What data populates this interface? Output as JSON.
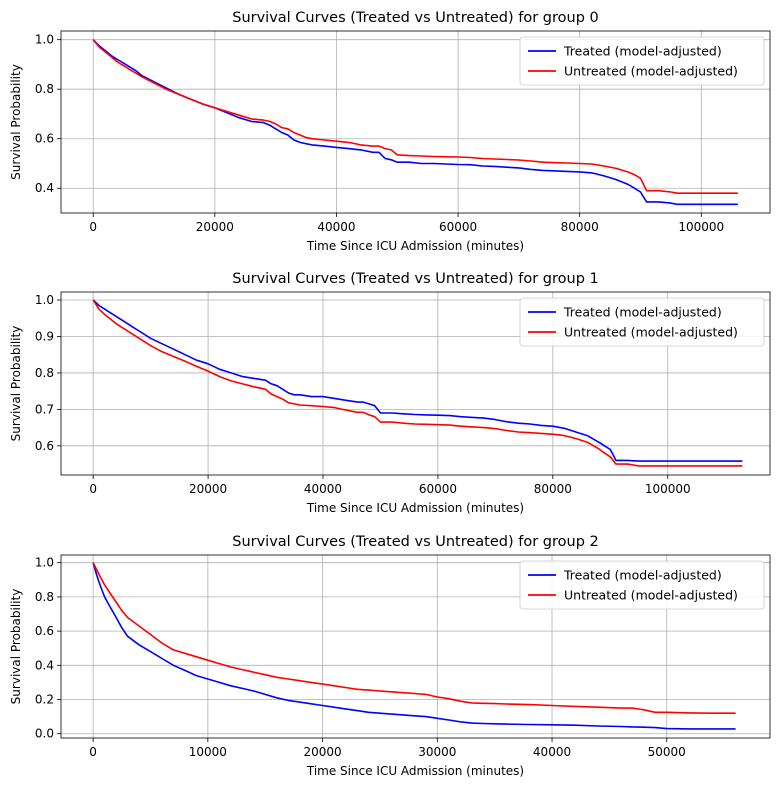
{
  "chart_data": [
    {
      "type": "line",
      "title": "Survival Curves (Treated vs Untreated) for group 0",
      "xlabel": "Time Since ICU Admission (minutes)",
      "ylabel": "Survival Probability",
      "xlim": [
        -5300,
        111300
      ],
      "ylim": [
        0.3,
        1.035
      ],
      "xticks": [
        0,
        20000,
        40000,
        60000,
        80000,
        100000
      ],
      "xtick_labels": [
        "0",
        "20000",
        "40000",
        "60000",
        "80000",
        "100000"
      ],
      "yticks": [
        0.4,
        0.6,
        0.8,
        1.0
      ],
      "ytick_labels": [
        "0.4",
        "0.6",
        "0.8",
        "1.0"
      ],
      "grid": true,
      "legend_position": "top-right",
      "series": [
        {
          "name": "Treated (model-adjusted)",
          "color": "#0000ff",
          "x": [
            0,
            1000,
            2000,
            3000,
            4000,
            5000,
            6000,
            7000,
            8000,
            10000,
            12000,
            14000,
            16000,
            18000,
            20000,
            22000,
            24000,
            26000,
            28000,
            29000,
            30000,
            31000,
            32000,
            33000,
            34000,
            35000,
            36000,
            38000,
            40000,
            42000,
            44000,
            46000,
            47000,
            48000,
            49000,
            50000,
            52000,
            54000,
            56000,
            58000,
            60000,
            62000,
            64000,
            66000,
            68000,
            70000,
            72000,
            74000,
            76000,
            78000,
            80000,
            82000,
            84000,
            86000,
            88000,
            89000,
            90000,
            91000,
            93000,
            95000,
            96000,
            100000,
            106000
          ],
          "y": [
            1.0,
            0.975,
            0.955,
            0.935,
            0.92,
            0.905,
            0.89,
            0.875,
            0.855,
            0.83,
            0.805,
            0.78,
            0.76,
            0.74,
            0.725,
            0.705,
            0.685,
            0.67,
            0.665,
            0.655,
            0.64,
            0.625,
            0.615,
            0.595,
            0.585,
            0.58,
            0.575,
            0.57,
            0.565,
            0.56,
            0.555,
            0.545,
            0.545,
            0.52,
            0.515,
            0.505,
            0.505,
            0.5,
            0.5,
            0.498,
            0.496,
            0.495,
            0.49,
            0.488,
            0.485,
            0.482,
            0.476,
            0.472,
            0.47,
            0.468,
            0.466,
            0.462,
            0.45,
            0.435,
            0.415,
            0.4,
            0.385,
            0.345,
            0.345,
            0.34,
            0.335,
            0.335,
            0.335
          ]
        },
        {
          "name": "Untreated (model-adjusted)",
          "color": "#ff0000",
          "x": [
            0,
            1000,
            2000,
            3000,
            4000,
            5000,
            6000,
            7000,
            8000,
            10000,
            12000,
            14000,
            16000,
            18000,
            20000,
            22000,
            24000,
            26000,
            28000,
            29000,
            30000,
            31000,
            32000,
            33000,
            34000,
            35000,
            36000,
            38000,
            40000,
            42000,
            44000,
            46000,
            47000,
            48000,
            49000,
            50000,
            52000,
            54000,
            56000,
            58000,
            60000,
            62000,
            64000,
            66000,
            68000,
            70000,
            72000,
            74000,
            76000,
            78000,
            80000,
            82000,
            84000,
            86000,
            88000,
            89000,
            90000,
            91000,
            93000,
            95000,
            96000,
            100000,
            106000
          ],
          "y": [
            1.0,
            0.97,
            0.95,
            0.93,
            0.91,
            0.895,
            0.88,
            0.865,
            0.85,
            0.825,
            0.8,
            0.78,
            0.76,
            0.74,
            0.725,
            0.71,
            0.695,
            0.68,
            0.675,
            0.67,
            0.66,
            0.645,
            0.64,
            0.625,
            0.615,
            0.605,
            0.6,
            0.595,
            0.59,
            0.585,
            0.575,
            0.57,
            0.57,
            0.56,
            0.555,
            0.535,
            0.532,
            0.53,
            0.528,
            0.527,
            0.526,
            0.524,
            0.52,
            0.518,
            0.516,
            0.514,
            0.51,
            0.505,
            0.503,
            0.502,
            0.5,
            0.498,
            0.49,
            0.48,
            0.465,
            0.455,
            0.44,
            0.39,
            0.39,
            0.385,
            0.38,
            0.38,
            0.38
          ]
        }
      ]
    },
    {
      "type": "line",
      "title": "Survival Curves (Treated vs Untreated) for group 1",
      "xlabel": "Time Since ICU Admission (minutes)",
      "ylabel": "Survival Probability",
      "xlim": [
        -5600,
        117800
      ],
      "ylim": [
        0.52,
        1.022
      ],
      "xticks": [
        0,
        20000,
        40000,
        60000,
        80000,
        100000
      ],
      "xtick_labels": [
        "0",
        "20000",
        "40000",
        "60000",
        "80000",
        "100000"
      ],
      "yticks": [
        0.6,
        0.7,
        0.8,
        0.9,
        1.0
      ],
      "ytick_labels": [
        "0.6",
        "0.7",
        "0.8",
        "0.9",
        "1.0"
      ],
      "grid": true,
      "legend_position": "top-right",
      "series": [
        {
          "name": "Treated (model-adjusted)",
          "color": "#0000ff",
          "x": [
            0,
            1000,
            2000,
            3000,
            4000,
            5000,
            6000,
            7000,
            8000,
            10000,
            12000,
            14000,
            16000,
            18000,
            20000,
            22000,
            24000,
            26000,
            28000,
            30000,
            31000,
            32000,
            33000,
            34000,
            35000,
            36000,
            38000,
            40000,
            42000,
            44000,
            46000,
            47000,
            48000,
            49000,
            50000,
            52000,
            54000,
            56000,
            58000,
            60000,
            62000,
            64000,
            66000,
            68000,
            70000,
            72000,
            74000,
            76000,
            78000,
            80000,
            82000,
            84000,
            86000,
            88000,
            89000,
            90000,
            91000,
            93000,
            95000,
            100000,
            113000
          ],
          "y": [
            1.0,
            0.985,
            0.975,
            0.965,
            0.955,
            0.945,
            0.935,
            0.925,
            0.915,
            0.895,
            0.88,
            0.865,
            0.85,
            0.835,
            0.825,
            0.81,
            0.8,
            0.79,
            0.785,
            0.78,
            0.77,
            0.765,
            0.755,
            0.745,
            0.74,
            0.74,
            0.735,
            0.735,
            0.73,
            0.725,
            0.72,
            0.72,
            0.715,
            0.71,
            0.69,
            0.69,
            0.688,
            0.686,
            0.685,
            0.684,
            0.683,
            0.68,
            0.678,
            0.676,
            0.672,
            0.666,
            0.662,
            0.66,
            0.656,
            0.654,
            0.648,
            0.638,
            0.628,
            0.61,
            0.6,
            0.59,
            0.56,
            0.56,
            0.558,
            0.558,
            0.558
          ]
        },
        {
          "name": "Untreated (model-adjusted)",
          "color": "#ff0000",
          "x": [
            0,
            1000,
            2000,
            3000,
            4000,
            5000,
            6000,
            7000,
            8000,
            10000,
            12000,
            14000,
            16000,
            18000,
            20000,
            22000,
            24000,
            26000,
            28000,
            30000,
            31000,
            32000,
            33000,
            34000,
            35000,
            36000,
            38000,
            40000,
            42000,
            44000,
            46000,
            47000,
            48000,
            49000,
            50000,
            52000,
            54000,
            56000,
            58000,
            60000,
            62000,
            64000,
            66000,
            68000,
            70000,
            72000,
            74000,
            76000,
            78000,
            80000,
            82000,
            84000,
            86000,
            88000,
            89000,
            90000,
            91000,
            93000,
            95000,
            100000,
            113000
          ],
          "y": [
            1.0,
            0.975,
            0.96,
            0.948,
            0.935,
            0.925,
            0.915,
            0.905,
            0.895,
            0.875,
            0.858,
            0.845,
            0.832,
            0.818,
            0.805,
            0.79,
            0.778,
            0.77,
            0.762,
            0.755,
            0.742,
            0.735,
            0.728,
            0.718,
            0.715,
            0.712,
            0.71,
            0.708,
            0.705,
            0.698,
            0.692,
            0.692,
            0.685,
            0.68,
            0.665,
            0.665,
            0.662,
            0.66,
            0.659,
            0.658,
            0.657,
            0.654,
            0.652,
            0.65,
            0.647,
            0.642,
            0.638,
            0.636,
            0.634,
            0.632,
            0.628,
            0.62,
            0.61,
            0.592,
            0.58,
            0.57,
            0.55,
            0.55,
            0.545,
            0.545,
            0.545
          ]
        }
      ]
    },
    {
      "type": "line",
      "title": "Survival Curves (Treated vs Untreated) for group 2",
      "xlabel": "Time Since ICU Admission (minutes)",
      "ylabel": "Survival Probability",
      "xlim": [
        -2800,
        59000
      ],
      "ylim": [
        -0.025,
        1.045
      ],
      "xticks": [
        0,
        10000,
        20000,
        30000,
        40000,
        50000
      ],
      "xtick_labels": [
        "0",
        "10000",
        "20000",
        "30000",
        "40000",
        "50000"
      ],
      "yticks": [
        0.0,
        0.2,
        0.4,
        0.6,
        0.8,
        1.0
      ],
      "ytick_labels": [
        "0.0",
        "0.2",
        "0.4",
        "0.6",
        "0.8",
        "1.0"
      ],
      "grid": true,
      "legend_position": "top-right",
      "series": [
        {
          "name": "Treated (model-adjusted)",
          "color": "#0000ff",
          "x": [
            0,
            300,
            600,
            1000,
            1500,
            2000,
            2500,
            3000,
            4000,
            5000,
            6000,
            7000,
            8000,
            9000,
            10000,
            11000,
            12000,
            13000,
            14000,
            15000,
            16000,
            17000,
            18000,
            19000,
            20000,
            21000,
            22000,
            23000,
            24000,
            25000,
            26000,
            27000,
            28000,
            29000,
            30000,
            31000,
            32000,
            33000,
            34000,
            35000,
            36000,
            38000,
            40000,
            42000,
            44000,
            46000,
            47000,
            48000,
            49000,
            50000,
            52000,
            54000,
            56000
          ],
          "y": [
            1.0,
            0.93,
            0.87,
            0.8,
            0.74,
            0.68,
            0.62,
            0.57,
            0.52,
            0.48,
            0.44,
            0.4,
            0.37,
            0.34,
            0.32,
            0.3,
            0.28,
            0.265,
            0.25,
            0.23,
            0.21,
            0.195,
            0.185,
            0.175,
            0.165,
            0.155,
            0.145,
            0.135,
            0.125,
            0.12,
            0.115,
            0.11,
            0.105,
            0.1,
            0.09,
            0.08,
            0.07,
            0.062,
            0.06,
            0.058,
            0.056,
            0.054,
            0.052,
            0.05,
            0.045,
            0.042,
            0.04,
            0.038,
            0.036,
            0.03,
            0.028,
            0.028,
            0.028
          ]
        },
        {
          "name": "Untreated (model-adjusted)",
          "color": "#ff0000",
          "x": [
            0,
            300,
            600,
            1000,
            1500,
            2000,
            2500,
            3000,
            4000,
            5000,
            6000,
            7000,
            8000,
            9000,
            10000,
            11000,
            12000,
            13000,
            14000,
            15000,
            16000,
            17000,
            18000,
            19000,
            20000,
            21000,
            22000,
            23000,
            24000,
            25000,
            26000,
            27000,
            28000,
            29000,
            30000,
            31000,
            32000,
            33000,
            34000,
            35000,
            36000,
            38000,
            40000,
            42000,
            44000,
            46000,
            47000,
            48000,
            49000,
            50000,
            52000,
            54000,
            56000
          ],
          "y": [
            1.0,
            0.96,
            0.92,
            0.87,
            0.82,
            0.77,
            0.72,
            0.68,
            0.63,
            0.58,
            0.53,
            0.49,
            0.47,
            0.45,
            0.43,
            0.41,
            0.39,
            0.375,
            0.36,
            0.345,
            0.33,
            0.32,
            0.31,
            0.3,
            0.29,
            0.28,
            0.27,
            0.26,
            0.255,
            0.25,
            0.245,
            0.24,
            0.235,
            0.23,
            0.215,
            0.205,
            0.19,
            0.18,
            0.178,
            0.176,
            0.174,
            0.17,
            0.165,
            0.16,
            0.155,
            0.15,
            0.15,
            0.14,
            0.125,
            0.125,
            0.122,
            0.12,
            0.12
          ]
        }
      ]
    }
  ]
}
